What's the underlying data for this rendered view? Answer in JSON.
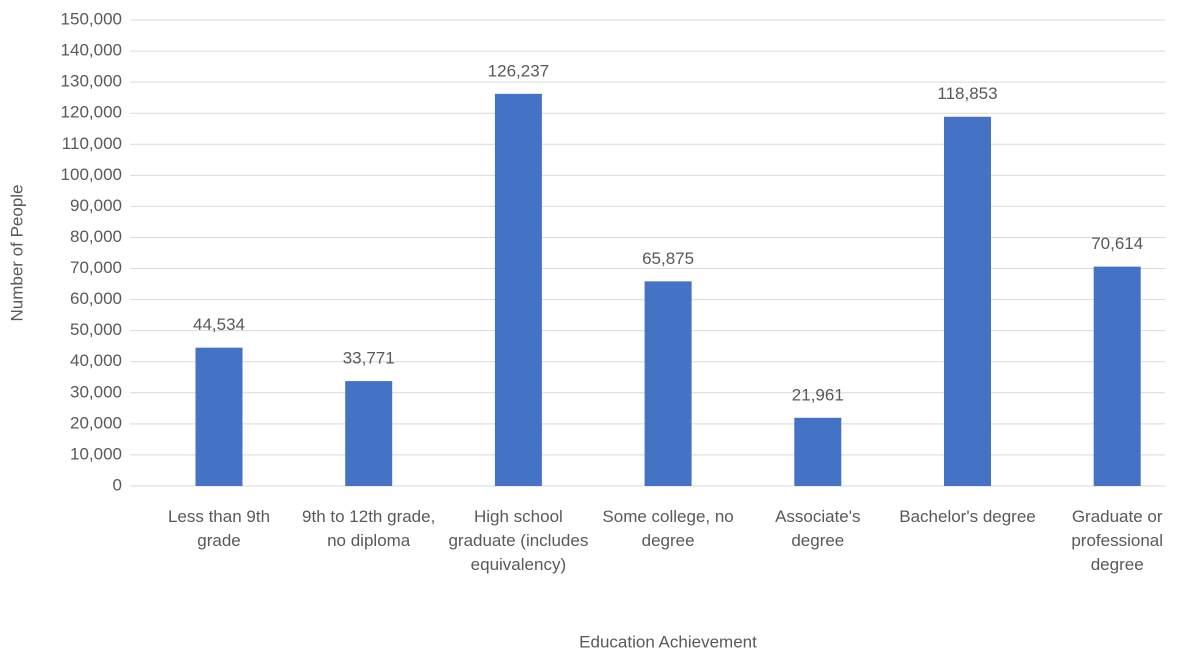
{
  "chart_data": {
    "type": "bar",
    "x_axis_label": "Education Achievement",
    "y_axis_label": "Number of People",
    "categories": [
      "Less than 9th grade",
      "9th to 12th grade, no diploma",
      "High school graduate (includes equivalency)",
      "Some college, no degree",
      "Associate's degree",
      "Bachelor's degree",
      "Graduate or professional degree"
    ],
    "values": [
      44534,
      33771,
      126237,
      65875,
      21961,
      118853,
      70614
    ],
    "value_labels": [
      "44,534",
      "33,771",
      "126,237",
      "65,875",
      "21,961",
      "118,853",
      "70,614"
    ],
    "color": "#4472c4",
    "ylim": [
      0,
      150000
    ],
    "yticks": [
      0,
      {
        "value": 10000,
        "label": "10,000"
      },
      {
        "value": 20000,
        "label": "20,000"
      },
      {
        "value": 30000,
        "label": "30,000"
      },
      {
        "value": 40000,
        "label": "40,000"
      },
      {
        "value": 50000,
        "label": "50,000"
      },
      {
        "value": 60000,
        "label": "60,000"
      },
      {
        "value": 70000,
        "label": "70,000"
      },
      {
        "value": 80000,
        "label": "80,000"
      },
      {
        "value": 90000,
        "label": "90,000"
      },
      {
        "value": 100000,
        "label": "100,000"
      },
      {
        "value": 110000,
        "label": "110,000"
      },
      {
        "value": 120000,
        "label": "120,000"
      },
      {
        "value": 130000,
        "label": "130,000"
      },
      {
        "value": 140000,
        "label": "140,000"
      },
      {
        "value": 150000,
        "label": "150,000"
      }
    ],
    "grid": true
  }
}
